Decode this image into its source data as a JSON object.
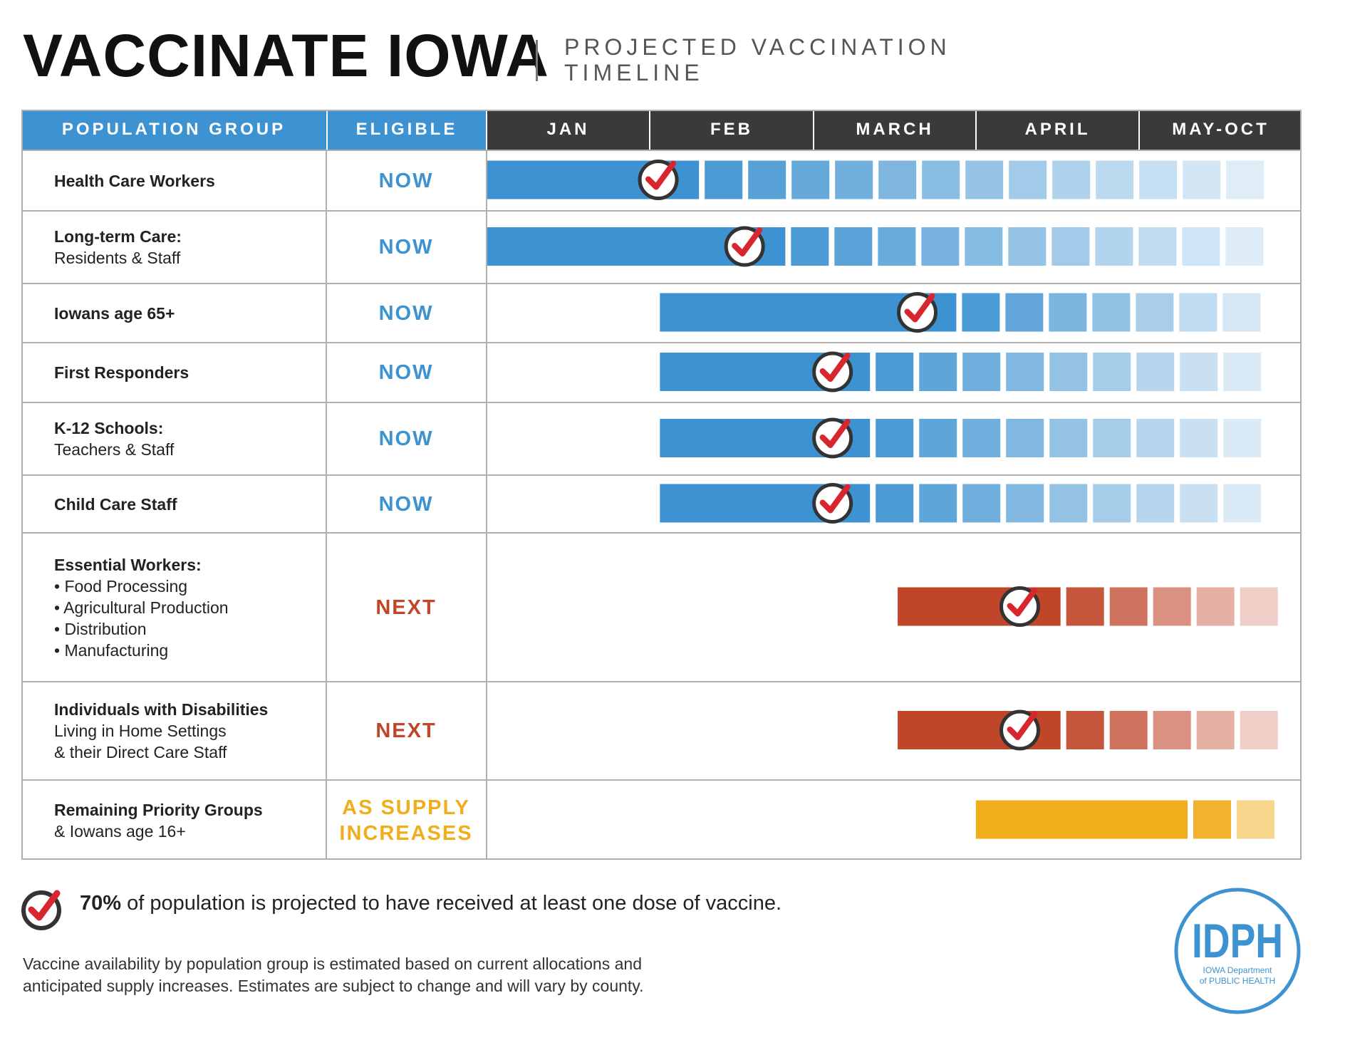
{
  "header": {
    "title": "VACCINATE IOWA",
    "subtitle_line1": "PROJECTED VACCINATION",
    "subtitle_line2": "TIMELINE"
  },
  "columns": {
    "group": "POPULATION GROUP",
    "eligible": "ELIGIBLE",
    "months": [
      "JAN",
      "FEB",
      "MARCH",
      "APRIL",
      "MAY-OCT"
    ]
  },
  "colors": {
    "header_blue": "#3d92d1",
    "header_dark": "#3a3a3a",
    "now": "#3d92d1",
    "next": "#c0462a",
    "supply": "#f0ad1c",
    "check": "#d8262f"
  },
  "rows": [
    {
      "name": "Health Care Workers",
      "sub": [],
      "eligible": "NOW"
    },
    {
      "name": "Long-term Care:",
      "sub": [
        "Residents & Staff"
      ],
      "eligible": "NOW"
    },
    {
      "name": "Iowans age 65+",
      "sub": [],
      "eligible": "NOW"
    },
    {
      "name": "First Responders",
      "sub": [],
      "eligible": "NOW"
    },
    {
      "name": "K-12 Schools:",
      "sub": [
        "Teachers & Staff"
      ],
      "eligible": "NOW"
    },
    {
      "name": "Child Care Staff",
      "sub": [],
      "eligible": "NOW"
    },
    {
      "name": "Essential Workers:",
      "sub": [
        "• Food Processing",
        "• Agricultural Production",
        "• Distribution",
        "• Manufacturing"
      ],
      "eligible": "NEXT"
    },
    {
      "name": "Individuals with Disabilities",
      "sub": [
        "Living in Home Settings",
        "& their Direct Care Staff"
      ],
      "eligible": "NEXT"
    },
    {
      "name": "Remaining Priority Groups",
      "sub": [
        "& Iowans age 16+"
      ],
      "eligible_lines": [
        "AS SUPPLY",
        "INCREASES"
      ],
      "eligible": "AS SUPPLY INCREASES"
    }
  ],
  "chart_data": {
    "type": "timeline",
    "title": "Projected Vaccination Timeline",
    "time_axis": [
      "JAN",
      "FEB",
      "MARCH",
      "APRIL",
      "MAY-OCT"
    ],
    "time_units": "months from start of JAN (0 = Jan 1, 4 = start of MAY-OCT column, 5 = end)",
    "series": [
      {
        "group": "Health Care Workers",
        "eligibility": "NOW",
        "start": 0.0,
        "solid_end": 1.3,
        "check_at": 1.05,
        "fade_to": 5.0
      },
      {
        "group": "Long-term Care: Residents & Staff",
        "eligibility": "NOW",
        "start": 0.0,
        "solid_end": 1.83,
        "check_at": 1.58,
        "fade_to": 5.0
      },
      {
        "group": "Iowans age 65+",
        "eligibility": "NOW",
        "start": 1.06,
        "solid_end": 2.88,
        "check_at": 2.64,
        "fade_to": 5.0
      },
      {
        "group": "First Responders",
        "eligibility": "NOW",
        "start": 1.06,
        "solid_end": 2.35,
        "check_at": 2.12,
        "fade_to": 5.0
      },
      {
        "group": "K-12 Schools: Teachers & Staff",
        "eligibility": "NOW",
        "start": 1.06,
        "solid_end": 2.35,
        "check_at": 2.12,
        "fade_to": 5.0
      },
      {
        "group": "Child Care Staff",
        "eligibility": "NOW",
        "start": 1.06,
        "solid_end": 2.35,
        "check_at": 2.12,
        "fade_to": 5.0
      },
      {
        "group": "Essential Workers",
        "eligibility": "NEXT",
        "start": 2.52,
        "solid_end": 3.52,
        "check_at": 3.27,
        "fade_to": 5.0
      },
      {
        "group": "Individuals with Disabilities Living in Home Settings & their Direct Care Staff",
        "eligibility": "NEXT",
        "start": 2.52,
        "solid_end": 3.52,
        "check_at": 3.27,
        "fade_to": 5.0
      },
      {
        "group": "Remaining Priority Groups & Iowans age 16+",
        "eligibility": "AS SUPPLY INCREASES",
        "start": 3.0,
        "solid_end": 4.3,
        "check_at": null,
        "fade_to": 5.0
      }
    ],
    "legend": "check = 70% of population projected to have received at least one dose"
  },
  "legend": {
    "bold": "70%",
    "text": "of population is projected to have received at least one dose of vaccine."
  },
  "footnote": {
    "line1": "Vaccine availability by population group is estimated based on current allocations and",
    "line2": "anticipated supply increases. Estimates are subject to change and will vary by county."
  },
  "logo": {
    "mark": "IDPH",
    "line1": "IOWA Department",
    "line2": "of PUBLIC HEALTH"
  }
}
